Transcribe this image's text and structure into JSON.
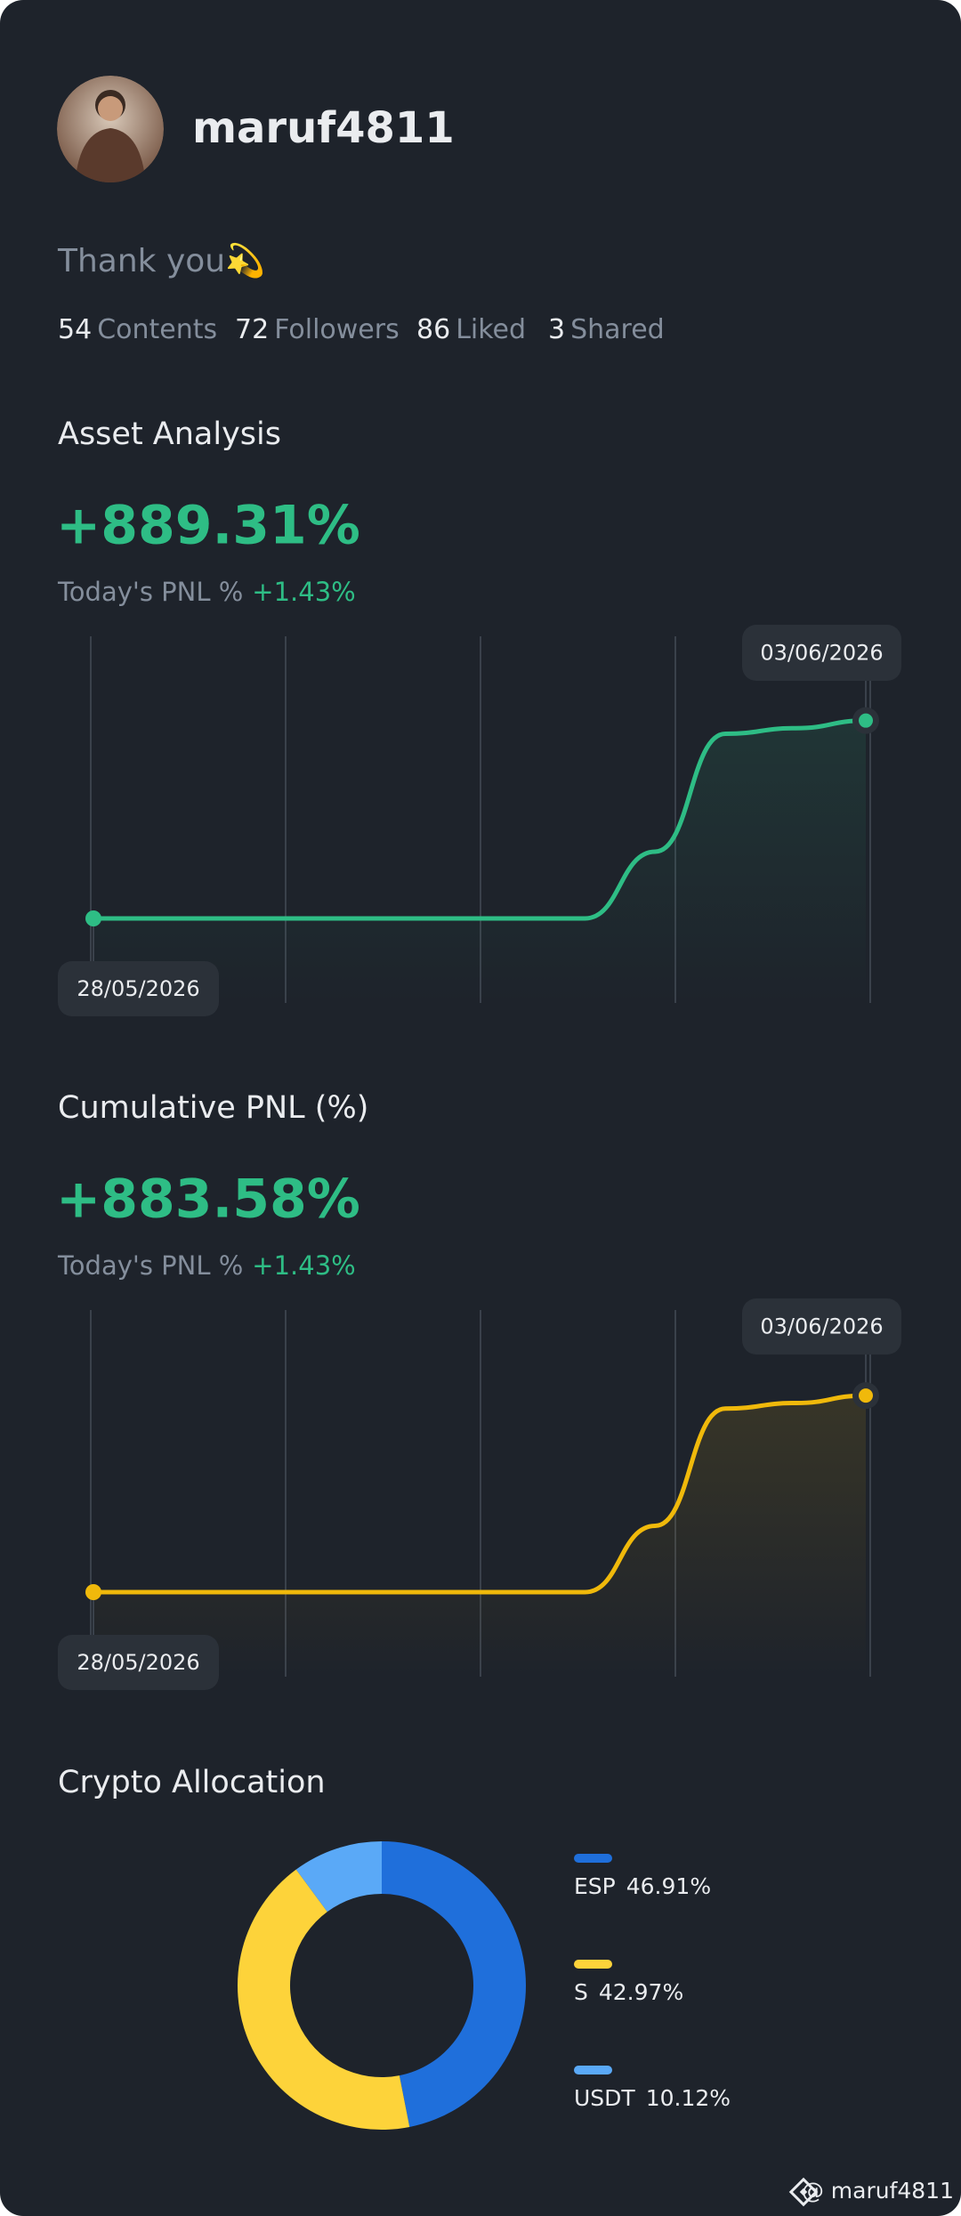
{
  "profile": {
    "username": "maruf4811",
    "bio": "Thank you💫",
    "stats": [
      {
        "count": "54",
        "label": "Contents"
      },
      {
        "count": "72",
        "label": "Followers"
      },
      {
        "count": "86",
        "label": "Liked"
      },
      {
        "count": "3",
        "label": "Shared"
      }
    ]
  },
  "chart_data": [
    {
      "type": "line",
      "title": "Asset Analysis",
      "headline": "+889.31%",
      "today_label": "Today's PNL %",
      "today_value": "+1.43%",
      "x": [
        "28/05/2026",
        null,
        null,
        null,
        null,
        null,
        null,
        null,
        null,
        null,
        null,
        "03/06/2026"
      ],
      "series": [
        {
          "color": "#2ebd85",
          "values": [
            0,
            0,
            0,
            0,
            0,
            0,
            0,
            0,
            300,
            830,
            855,
            889.31
          ]
        }
      ],
      "ylim": [
        -100,
        1000
      ]
    },
    {
      "type": "line",
      "title": "Cumulative PNL (%)",
      "headline": "+883.58%",
      "today_label": "Today's PNL %",
      "today_value": "+1.43%",
      "x": [
        "28/05/2026",
        null,
        null,
        null,
        null,
        null,
        null,
        null,
        null,
        null,
        null,
        "03/06/2026"
      ],
      "series": [
        {
          "color": "#f0b90b",
          "values": [
            0,
            0,
            0,
            0,
            0,
            0,
            0,
            0,
            298,
            825,
            850,
            883.58
          ]
        }
      ],
      "ylim": [
        -100,
        1000
      ]
    },
    {
      "type": "pie",
      "title": "Crypto Allocation",
      "categories": [
        "ESP",
        "S",
        "USDT"
      ],
      "values": [
        46.91,
        42.97,
        10.12
      ],
      "value_labels": [
        "46.91%",
        "42.97%",
        "10.12%"
      ],
      "colors": [
        "#1f6fdb",
        "#fdd33a",
        "#5aa9f7"
      ]
    }
  ],
  "watermark": "@ maruf4811"
}
